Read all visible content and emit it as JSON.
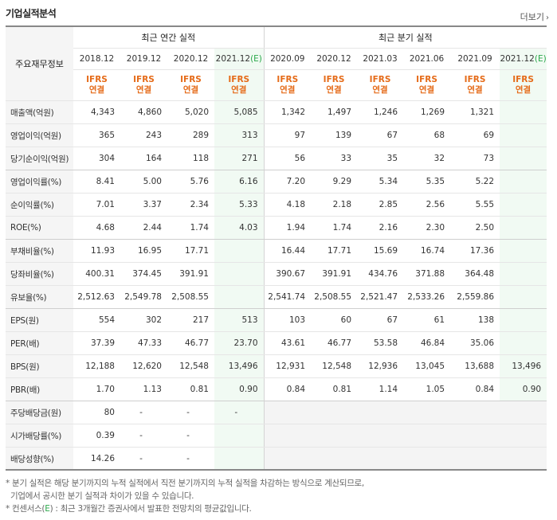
{
  "section": {
    "title": "기업실적분석",
    "more_label": "더보기"
  },
  "table": {
    "row_header_label": "주요재무정보",
    "group_annual": "최근 연간 실적",
    "group_quarter": "최근 분기 실적",
    "periods_annual": [
      "2018.12",
      "2019.12",
      "2020.12",
      "2021.12"
    ],
    "periods_quarter": [
      "2020.09",
      "2020.12",
      "2021.03",
      "2021.06",
      "2021.09",
      "2021.12"
    ],
    "estimate_mark": "(E)",
    "ifrs_line1": "IFRS",
    "ifrs_line2": "연결",
    "rows": [
      {
        "label": "매출액(억원)",
        "values": [
          "4,343",
          "4,860",
          "5,020",
          "5,085",
          "1,342",
          "1,497",
          "1,246",
          "1,269",
          "1,321",
          ""
        ]
      },
      {
        "label": "영업이익(억원)",
        "values": [
          "365",
          "243",
          "289",
          "313",
          "97",
          "139",
          "67",
          "68",
          "69",
          ""
        ]
      },
      {
        "label": "당기순이익(억원)",
        "values": [
          "304",
          "164",
          "118",
          "271",
          "56",
          "33",
          "35",
          "32",
          "73",
          ""
        ]
      },
      {
        "label": "영업이익률(%)",
        "values": [
          "8.41",
          "5.00",
          "5.76",
          "6.16",
          "7.20",
          "9.29",
          "5.34",
          "5.35",
          "5.22",
          ""
        ]
      },
      {
        "label": "순이익률(%)",
        "values": [
          "7.01",
          "3.37",
          "2.34",
          "5.33",
          "4.18",
          "2.18",
          "2.85",
          "2.56",
          "5.55",
          ""
        ]
      },
      {
        "label": "ROE(%)",
        "values": [
          "4.68",
          "2.44",
          "1.74",
          "4.03",
          "1.94",
          "1.74",
          "2.16",
          "2.30",
          "2.50",
          ""
        ]
      },
      {
        "label": "부채비율(%)",
        "values": [
          "11.93",
          "16.95",
          "17.71",
          "",
          "16.44",
          "17.71",
          "15.69",
          "16.74",
          "17.36",
          ""
        ]
      },
      {
        "label": "당좌비율(%)",
        "values": [
          "400.31",
          "374.45",
          "391.91",
          "",
          "390.67",
          "391.91",
          "434.76",
          "371.88",
          "364.48",
          ""
        ]
      },
      {
        "label": "유보율(%)",
        "values": [
          "2,512.63",
          "2,549.78",
          "2,508.55",
          "",
          "2,541.74",
          "2,508.55",
          "2,521.47",
          "2,533.26",
          "2,559.86",
          ""
        ]
      },
      {
        "label": "EPS(원)",
        "values": [
          "554",
          "302",
          "217",
          "513",
          "103",
          "60",
          "67",
          "61",
          "138",
          ""
        ]
      },
      {
        "label": "PER(배)",
        "values": [
          "37.39",
          "47.33",
          "46.77",
          "23.70",
          "43.61",
          "46.77",
          "53.58",
          "46.84",
          "35.06",
          ""
        ]
      },
      {
        "label": "BPS(원)",
        "values": [
          "12,188",
          "12,620",
          "12,548",
          "13,496",
          "12,931",
          "12,548",
          "12,936",
          "13,045",
          "13,688",
          "13,496"
        ]
      },
      {
        "label": "PBR(배)",
        "values": [
          "1.70",
          "1.13",
          "0.81",
          "0.90",
          "0.84",
          "0.81",
          "1.14",
          "1.05",
          "0.84",
          "0.90"
        ]
      },
      {
        "label": "주당배당금(원)",
        "values": [
          "80",
          "-",
          "-",
          "-",
          "",
          "",
          "",
          "",
          "",
          ""
        ]
      },
      {
        "label": "시가배당률(%)",
        "values": [
          "0.39",
          "-",
          "-",
          "",
          "",
          "",
          "",
          "",
          "",
          ""
        ]
      },
      {
        "label": "배당성향(%)",
        "values": [
          "14.26",
          "-",
          "-",
          "",
          "",
          "",
          "",
          "",
          "",
          ""
        ]
      }
    ]
  },
  "notes": {
    "line1": "* 분기 실적은 해당 분기까지의 누적 실적에서 직전 분기까지의 누적 실적을 차감하는 방식으로 계산되므로,",
    "line2": "기업에서 공시한 분기 실적과 차이가 있을 수 있습니다.",
    "line3_prefix": "* 컨센서스(",
    "line3_mark": "E",
    "line3_suffix": ") : 최근 3개월간 증권사에서 발표한 전망치의 평균값입니다."
  }
}
